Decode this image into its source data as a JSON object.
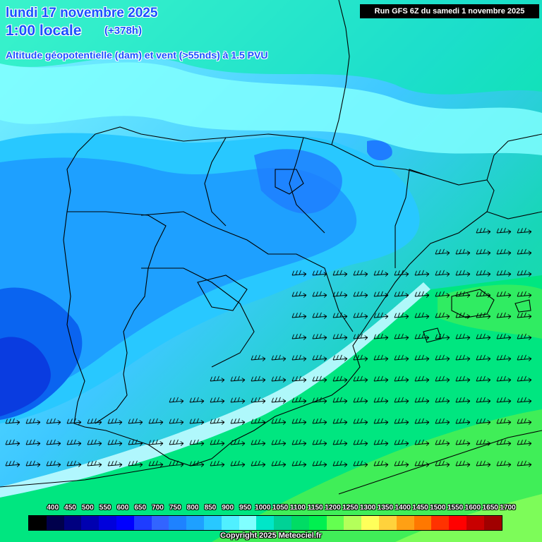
{
  "header": {
    "date_line": "lundi 17 novembre 2025",
    "time_line": "1:00 locale",
    "lead_time": "(+378h)",
    "parameter": "Altitude géopotentielle (dam) et vent (>55nds) à 1.5 PVU",
    "run_info": "Run GFS 6Z du samedi 1 novembre 2025"
  },
  "legend": {
    "labels": [
      "400",
      "450",
      "500",
      "550",
      "600",
      "650",
      "700",
      "750",
      "800",
      "850",
      "900",
      "950",
      "1000",
      "1050",
      "1100",
      "1150",
      "1200",
      "1250",
      "1300",
      "1350",
      "1400",
      "1450",
      "1500",
      "1550",
      "1600",
      "1650",
      "1700"
    ],
    "colors": [
      "#000000",
      "#00004c",
      "#000080",
      "#0000b0",
      "#0000dc",
      "#0000ff",
      "#1e3cff",
      "#3264ff",
      "#1e82ff",
      "#1ea0ff",
      "#28c8ff",
      "#50f0ff",
      "#80ffff",
      "#00e6c8",
      "#00d296",
      "#00dc64",
      "#00f050",
      "#64ff50",
      "#b4ff5a",
      "#ffff5a",
      "#ffd23c",
      "#ffa014",
      "#ff7800",
      "#ff3200",
      "#ff0000",
      "#c80000",
      "#a00000",
      "#780000",
      "#640014",
      "#50141e",
      "#3c0a0a"
    ]
  },
  "copyright": "Copyright 2025 Meteociel.fr",
  "map_colors": {
    "deep_blue": "#0a64f0",
    "mid_blue": "#1ea0ff",
    "light_blue": "#28c8ff",
    "cyan": "#64f0ff",
    "teal": "#00e6c8",
    "green": "#00e696",
    "bright_green": "#00f064",
    "lime": "#80ff5a"
  }
}
